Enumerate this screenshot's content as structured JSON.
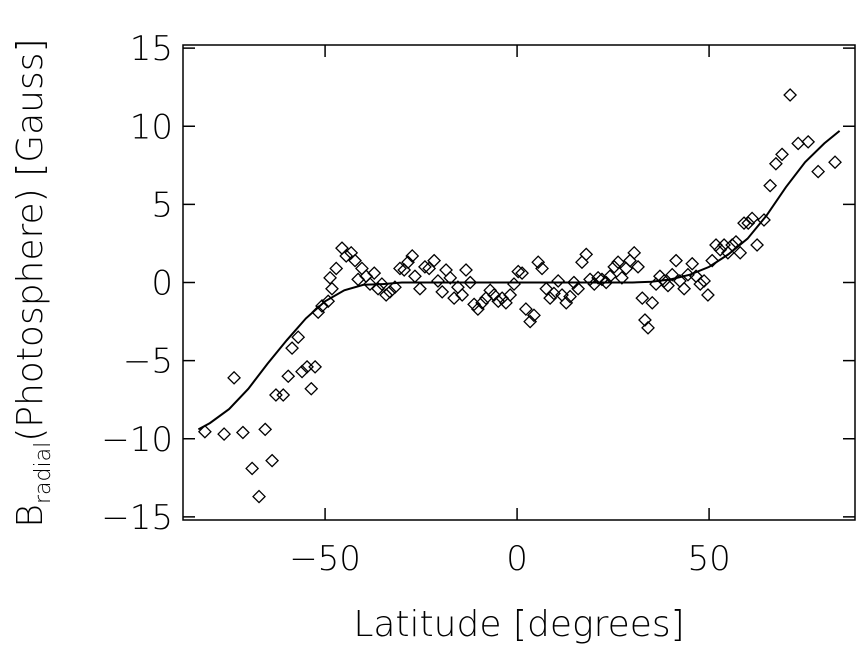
{
  "chart_data": {
    "type": "scatter",
    "xlabel": "Latitude [degrees]",
    "ylabel": {
      "main": "B",
      "sub": "radial",
      "rest": "(Photosphere) [Gauss]"
    },
    "xlim": [
      -87,
      88
    ],
    "ylim": [
      -15.2,
      15.2
    ],
    "xticks": [
      {
        "value": -50,
        "label": "−50"
      },
      0,
      50
    ],
    "yticks": [
      {
        "value": -15,
        "label": "−15"
      },
      {
        "value": -10,
        "label": "−10"
      },
      {
        "value": -5,
        "label": "−5"
      },
      0,
      5,
      10,
      15
    ],
    "series": [
      {
        "mode": "markers",
        "marker": "diamond",
        "color": "#000000",
        "x": [
          -81.3,
          -76.3,
          -73.7,
          -71.4,
          -69.0,
          -67.2,
          -65.6,
          -63.8,
          -62.8,
          -60.9,
          -59.6,
          -58.6,
          -57.0,
          -56.0,
          -54.7,
          -53.6,
          -52.6,
          -51.8,
          -50.8,
          -49.2,
          -48.2,
          -48.7,
          -47.1,
          -45.6,
          -44.5,
          -43.2,
          -42.2,
          -41.4,
          -40.4,
          -39.3,
          -38.3,
          -37.2,
          -36.2,
          -35.2,
          -34.1,
          -33.1,
          -31.8,
          -30.5,
          -29.4,
          -28.4,
          -27.3,
          -26.6,
          -25.3,
          -24.0,
          -22.9,
          -21.6,
          -20.6,
          -19.5,
          -18.5,
          -17.4,
          -16.4,
          -15.4,
          -14.3,
          -13.3,
          -12.2,
          -11.2,
          -10.2,
          -9.1,
          -8.1,
          -7.0,
          -6.0,
          -4.9,
          -3.9,
          -2.9,
          -1.8,
          -0.8,
          0.3,
          1.3,
          2.3,
          3.4,
          4.4,
          5.5,
          6.5,
          7.6,
          8.6,
          9.6,
          10.7,
          11.7,
          12.8,
          13.8,
          14.8,
          15.9,
          16.9,
          18.0,
          19.0,
          20.1,
          21.1,
          22.1,
          23.2,
          24.2,
          25.3,
          26.3,
          27.3,
          28.4,
          29.4,
          30.5,
          31.5,
          32.6,
          33.3,
          34.1,
          35.2,
          36.2,
          37.2,
          38.3,
          39.3,
          40.4,
          41.4,
          42.4,
          43.5,
          44.5,
          45.6,
          46.6,
          47.7,
          48.7,
          49.7,
          50.8,
          51.8,
          52.9,
          53.9,
          54.9,
          56.0,
          57.0,
          58.1,
          59.1,
          60.2,
          61.2,
          62.5,
          64.3,
          65.9,
          67.4,
          69.0,
          71.1,
          73.2,
          75.8,
          78.4,
          82.8
        ],
        "values": [
          -9.55,
          -9.7,
          -6.1,
          -9.6,
          -11.9,
          -13.7,
          -9.4,
          -11.4,
          -7.2,
          -7.2,
          -6.0,
          -4.2,
          -3.5,
          -5.7,
          -5.4,
          -6.8,
          -5.4,
          -1.9,
          -1.5,
          -1.2,
          -0.4,
          0.3,
          0.9,
          2.2,
          1.7,
          1.9,
          1.4,
          0.2,
          0.9,
          0.4,
          -0.1,
          0.6,
          -0.4,
          -0.1,
          -0.8,
          -0.6,
          -0.3,
          0.9,
          0.8,
          1.3,
          1.7,
          0.4,
          -0.4,
          1.0,
          0.9,
          1.4,
          0.1,
          -0.6,
          0.8,
          0.3,
          -1.0,
          -0.3,
          -0.8,
          0.8,
          0.0,
          -1.4,
          -1.7,
          -1.3,
          -1.0,
          -0.5,
          -0.8,
          -1.2,
          -1.0,
          -1.3,
          -0.8,
          -0.1,
          0.7,
          0.6,
          -1.7,
          -2.5,
          -2.1,
          1.3,
          0.9,
          -0.4,
          -1.0,
          -0.7,
          0.1,
          -0.8,
          -1.3,
          -0.9,
          0.0,
          -0.4,
          1.3,
          1.8,
          0.2,
          -0.1,
          0.3,
          0.2,
          0.0,
          0.4,
          1.0,
          1.3,
          0.3,
          0.9,
          1.4,
          1.9,
          1.0,
          -1.0,
          -2.4,
          -2.9,
          -1.3,
          -0.1,
          0.4,
          0.1,
          -0.2,
          0.5,
          1.4,
          0.1,
          -0.4,
          0.5,
          1.2,
          0.4,
          -0.1,
          0.1,
          -0.8,
          1.4,
          2.4,
          2.1,
          2.4,
          1.9,
          2.4,
          2.6,
          1.9,
          3.8,
          3.8,
          4.1,
          2.4,
          4.0,
          6.2,
          7.6,
          8.2,
          12.0,
          8.9,
          9.0,
          7.1,
          7.7
        ]
      },
      {
        "mode": "line",
        "color": "#000000",
        "x": [
          -83,
          -80,
          -75,
          -70,
          -65,
          -60,
          -55,
          -50,
          -45,
          -40,
          -35,
          -30,
          -20,
          -10,
          0,
          10,
          20,
          30,
          35,
          40,
          45,
          50,
          55,
          60,
          65,
          70,
          75,
          80,
          84
        ],
        "values": [
          -9.4,
          -9.0,
          -8.1,
          -6.8,
          -5.2,
          -3.7,
          -2.3,
          -1.2,
          -0.5,
          -0.15,
          -0.1,
          0,
          0,
          0,
          0,
          0,
          0,
          0,
          0.05,
          0.2,
          0.5,
          1.0,
          1.8,
          2.8,
          4.3,
          6.1,
          7.7,
          8.9,
          9.7
        ]
      }
    ]
  }
}
